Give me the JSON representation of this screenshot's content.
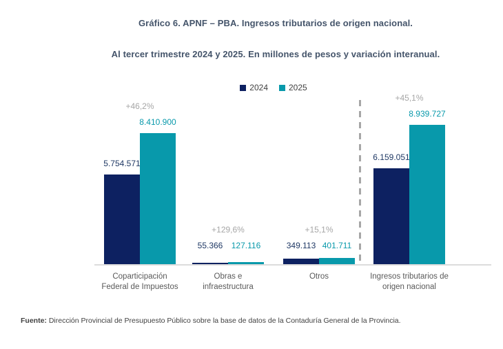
{
  "header": {
    "title": "Gráfico 6. APNF – PBA. Ingresos tributarios de origen nacional.",
    "subtitle": "Al tercer trimestre 2024 y 2025. En millones de pesos y variación interanual."
  },
  "colors": {
    "bar_2024": "#0d2161",
    "bar_2025": "#0899ab",
    "label_2024": "#1f3864",
    "label_2025": "#0899ab",
    "pct_label": "#a6a6a6",
    "category_label": "#595959",
    "title_text": "#44546a",
    "axis_line": "#dcdcdc",
    "separator_line": "#a6a6a6"
  },
  "chart_data": {
    "type": "bar",
    "title": "Gráfico 6. APNF – PBA. Ingresos tributarios de origen nacional.",
    "subtitle": "Al tercer trimestre 2024 y 2025. En millones de pesos y variación interanual.",
    "units": "millones de pesos",
    "categories": [
      "Coparticipación Federal de Impuestos",
      "Obras e infraestructura",
      "Otros",
      "Ingresos tributarios de origen nacional"
    ],
    "series": [
      {
        "name": "2024",
        "values": [
          5754571,
          55366,
          349113,
          6159051
        ]
      },
      {
        "name": "2025",
        "values": [
          8410900,
          127116,
          401711,
          8939727
        ]
      }
    ],
    "value_labels": [
      [
        "5.754.571",
        "55.366",
        "349.113",
        "6.159.051"
      ],
      [
        "8.410.900",
        "127.116",
        "401.711",
        "8.939.727"
      ]
    ],
    "pct_change_labels": [
      "+46,2%",
      "+129,6%",
      "+15,1%",
      "+45,1%"
    ],
    "ylim": [
      0,
      9000000
    ],
    "legend_position": "top",
    "grid": false,
    "separator_before_category_index": 3
  },
  "footer": {
    "source_label": "Fuente:",
    "source_text": " Dirección Provincial de Presupuesto Público sobre la base de datos de la Contaduría General de la Provincia."
  }
}
